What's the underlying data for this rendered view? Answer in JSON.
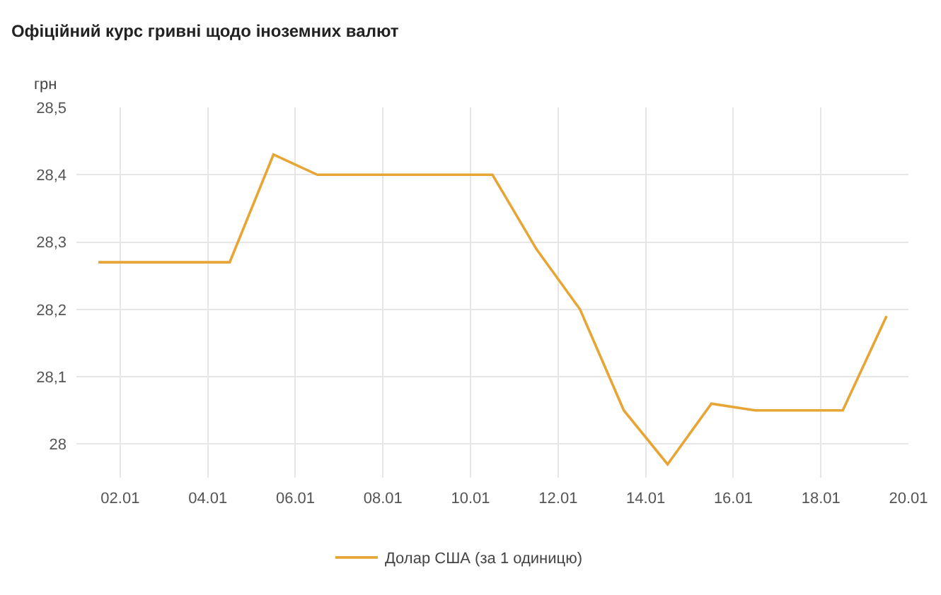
{
  "chart_data": {
    "type": "line",
    "title": "Офіційний курс гривні щодо іноземних валют",
    "ylabel": "грн",
    "x": [
      "--01-01T12:00",
      "--01-02T12:00",
      "--01-03T12:00",
      "--01-04T12:00",
      "--01-05T12:00",
      "--01-06T12:00",
      "--01-07T12:00",
      "--01-08T12:00",
      "--01-09T12:00",
      "--01-10T12:00",
      "--01-11T12:00",
      "--01-12T12:00",
      "--01-13T12:00",
      "--01-14T12:00",
      "--01-15T12:00",
      "--01-16T12:00",
      "--01-17T12:00",
      "--01-18T12:00",
      "--01-19T12:00"
    ],
    "series": [
      {
        "name": "Долар США (за 1 одиницю)",
        "color": "#e6a534",
        "values": [
          28.27,
          28.27,
          28.27,
          28.27,
          28.43,
          28.4,
          28.4,
          28.4,
          28.4,
          28.4,
          28.29,
          28.2,
          28.05,
          27.97,
          28.06,
          28.05,
          28.05,
          28.05,
          28.19
        ]
      }
    ],
    "xlim": [
      "--01-01",
      "--01-20"
    ],
    "xticks": [
      {
        "value": "--01-02",
        "label": "02.01"
      },
      {
        "value": "--01-04",
        "label": "04.01"
      },
      {
        "value": "--01-06",
        "label": "06.01"
      },
      {
        "value": "--01-08",
        "label": "08.01"
      },
      {
        "value": "--01-10",
        "label": "10.01"
      },
      {
        "value": "--01-12",
        "label": "12.01"
      },
      {
        "value": "--01-14",
        "label": "14.01"
      },
      {
        "value": "--01-16",
        "label": "16.01"
      },
      {
        "value": "--01-18",
        "label": "18.01"
      },
      {
        "value": "--01-20",
        "label": "20.01"
      }
    ],
    "ylim": [
      27.95,
      28.5
    ],
    "yticks": [
      28,
      {
        "value": 28.1,
        "label": "28,1"
      },
      {
        "value": 28.2,
        "label": "28,2"
      },
      {
        "value": 28.3,
        "label": "28,3"
      },
      {
        "value": 28.4,
        "label": "28,4"
      },
      {
        "value": 28.5,
        "label": "28,5"
      }
    ],
    "grid": true,
    "legend": "bottom",
    "marker": "none",
    "line_style": "solid"
  }
}
